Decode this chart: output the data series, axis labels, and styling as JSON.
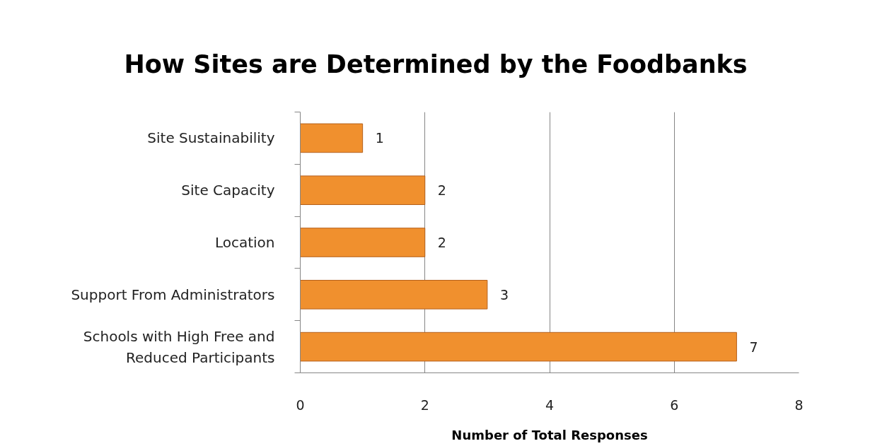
{
  "chart_data": {
    "type": "bar",
    "orientation": "horizontal",
    "title": "How Sites are Determined by the Foodbanks",
    "xlabel": "Number of Total Responses",
    "categories": [
      "Site Sustainability",
      "Site Capacity",
      "Location",
      "Support From Administrators",
      "Schools with High Free and Reduced Participants"
    ],
    "values": [
      1,
      2,
      2,
      3,
      7
    ],
    "color": "#f0902e",
    "xlim": [
      0,
      8
    ],
    "xticks": [
      0,
      2,
      4,
      6,
      8
    ],
    "grid": "x",
    "data_labels": true
  }
}
